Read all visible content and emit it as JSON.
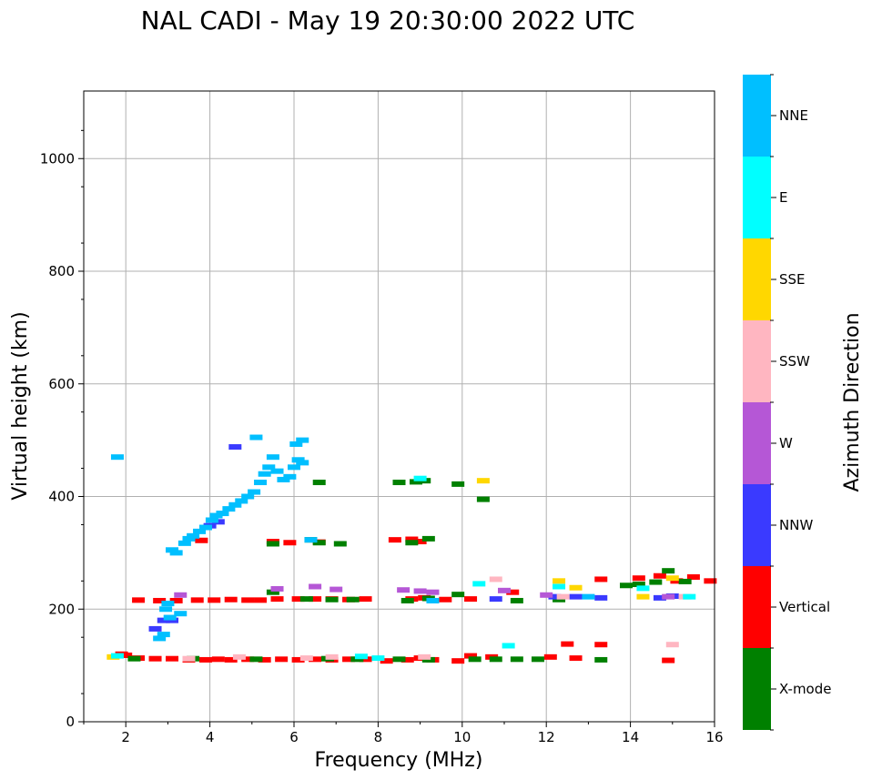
{
  "chart_data": {
    "type": "scatter",
    "title": "NAL CADI - May 19 20:30:00 2022 UTC",
    "xlabel": "Frequency (MHz)",
    "ylabel": "Virtual height (km)",
    "xlim": [
      1,
      16
    ],
    "ylim": [
      0,
      1120
    ],
    "xticks": [
      2,
      4,
      6,
      8,
      10,
      12,
      14,
      16
    ],
    "yticks": [
      0,
      200,
      400,
      600,
      800,
      1000
    ],
    "grid": true,
    "colorbar": {
      "label": "Azimuth Direction",
      "categories": [
        {
          "name": "X-mode",
          "color": "#008000"
        },
        {
          "name": "Vertical",
          "color": "#ff0000"
        },
        {
          "name": "NNW",
          "color": "#3a3aff"
        },
        {
          "name": "W",
          "color": "#b557d6"
        },
        {
          "name": "SSW",
          "color": "#ffb6c1"
        },
        {
          "name": "SSE",
          "color": "#ffd700"
        },
        {
          "name": "E",
          "color": "#00ffff"
        },
        {
          "name": "NNE",
          "color": "#00bfff"
        }
      ]
    },
    "series": [
      {
        "name": "Vertical",
        "points": [
          [
            1.9,
            120
          ],
          [
            2.0,
            118
          ],
          [
            2.3,
            113
          ],
          [
            2.7,
            112
          ],
          [
            3.1,
            112
          ],
          [
            3.5,
            110
          ],
          [
            3.9,
            110
          ],
          [
            4.2,
            111
          ],
          [
            4.5,
            110
          ],
          [
            4.9,
            111
          ],
          [
            5.3,
            110
          ],
          [
            5.7,
            111
          ],
          [
            6.1,
            110
          ],
          [
            6.5,
            111
          ],
          [
            6.9,
            110
          ],
          [
            7.3,
            111
          ],
          [
            7.7,
            111
          ],
          [
            8.2,
            108
          ],
          [
            8.7,
            110
          ],
          [
            9.0,
            113
          ],
          [
            9.3,
            110
          ],
          [
            9.9,
            108
          ],
          [
            10.2,
            117
          ],
          [
            10.7,
            115
          ],
          [
            12.1,
            115
          ],
          [
            12.5,
            138
          ],
          [
            12.7,
            113
          ],
          [
            13.3,
            137
          ],
          [
            14.9,
            109
          ],
          [
            2.3,
            216
          ],
          [
            2.8,
            215
          ],
          [
            3.2,
            215
          ],
          [
            3.7,
            216
          ],
          [
            4.1,
            216
          ],
          [
            4.5,
            217
          ],
          [
            4.9,
            216
          ],
          [
            5.2,
            216
          ],
          [
            5.6,
            218
          ],
          [
            6.1,
            218
          ],
          [
            6.5,
            218
          ],
          [
            6.9,
            218
          ],
          [
            7.3,
            217
          ],
          [
            7.7,
            218
          ],
          [
            8.8,
            218
          ],
          [
            9.1,
            220
          ],
          [
            9.6,
            217
          ],
          [
            10.2,
            218
          ],
          [
            11.2,
            230
          ],
          [
            13.3,
            253
          ],
          [
            14.2,
            255
          ],
          [
            14.7,
            259
          ],
          [
            15.1,
            250
          ],
          [
            15.5,
            257
          ],
          [
            15.9,
            250
          ],
          [
            3.8,
            322
          ],
          [
            5.5,
            320
          ],
          [
            5.9,
            318
          ],
          [
            6.6,
            319
          ],
          [
            8.4,
            323
          ],
          [
            8.8,
            324
          ],
          [
            9.0,
            320
          ]
        ]
      },
      {
        "name": "X-mode",
        "points": [
          [
            2.2,
            112
          ],
          [
            3.6,
            112
          ],
          [
            5.1,
            111
          ],
          [
            6.8,
            112
          ],
          [
            7.5,
            111
          ],
          [
            8.5,
            111
          ],
          [
            9.2,
            110
          ],
          [
            10.3,
            111
          ],
          [
            10.8,
            111
          ],
          [
            11.3,
            111
          ],
          [
            11.8,
            111
          ],
          [
            13.3,
            110
          ],
          [
            5.5,
            230
          ],
          [
            6.3,
            218
          ],
          [
            6.9,
            217
          ],
          [
            7.4,
            217
          ],
          [
            8.7,
            215
          ],
          [
            9.2,
            219
          ],
          [
            9.9,
            226
          ],
          [
            11.3,
            215
          ],
          [
            12.3,
            217
          ],
          [
            13.9,
            242
          ],
          [
            14.2,
            244
          ],
          [
            14.6,
            248
          ],
          [
            14.9,
            268
          ],
          [
            15.3,
            249
          ],
          [
            5.5,
            316
          ],
          [
            6.4,
            323
          ],
          [
            6.6,
            318
          ],
          [
            7.1,
            316
          ],
          [
            8.8,
            318
          ],
          [
            9.2,
            325
          ],
          [
            6.6,
            425
          ],
          [
            8.5,
            425
          ],
          [
            8.9,
            426
          ],
          [
            9.1,
            428
          ],
          [
            9.9,
            422
          ],
          [
            10.5,
            395
          ]
        ]
      },
      {
        "name": "NNW",
        "points": [
          [
            2.7,
            165
          ],
          [
            2.9,
            180
          ],
          [
            3.1,
            180
          ],
          [
            4.0,
            348
          ],
          [
            4.2,
            355
          ],
          [
            4.6,
            488
          ],
          [
            10.8,
            218
          ],
          [
            12.2,
            222
          ],
          [
            12.7,
            222
          ],
          [
            13.3,
            220
          ],
          [
            14.7,
            220
          ],
          [
            15.0,
            223
          ]
        ]
      },
      {
        "name": "W",
        "points": [
          [
            3.3,
            225
          ],
          [
            5.6,
            236
          ],
          [
            6.5,
            240
          ],
          [
            7.0,
            235
          ],
          [
            8.6,
            234
          ],
          [
            9.0,
            232
          ],
          [
            9.3,
            230
          ],
          [
            11.0,
            233
          ],
          [
            12.0,
            225
          ],
          [
            14.9,
            222
          ]
        ]
      },
      {
        "name": "SSW",
        "points": [
          [
            3.5,
            112
          ],
          [
            4.7,
            115
          ],
          [
            6.3,
            113
          ],
          [
            6.9,
            115
          ],
          [
            9.1,
            115
          ],
          [
            10.8,
            253
          ],
          [
            12.4,
            222
          ],
          [
            15.0,
            137
          ],
          [
            15.3,
            222
          ]
        ]
      },
      {
        "name": "SSE",
        "points": [
          [
            1.7,
            115
          ],
          [
            10.5,
            428
          ],
          [
            12.3,
            250
          ],
          [
            12.7,
            238
          ],
          [
            14.3,
            222
          ],
          [
            15.0,
            255
          ]
        ]
      },
      {
        "name": "E",
        "points": [
          [
            1.8,
            117
          ],
          [
            7.6,
            116
          ],
          [
            8.0,
            113
          ],
          [
            9.0,
            432
          ],
          [
            10.4,
            245
          ],
          [
            11.1,
            135
          ],
          [
            12.3,
            240
          ],
          [
            14.3,
            237
          ],
          [
            15.4,
            222
          ]
        ]
      },
      {
        "name": "NNE",
        "points": [
          [
            1.8,
            470
          ],
          [
            2.8,
            148
          ],
          [
            2.9,
            155
          ],
          [
            2.95,
            200
          ],
          [
            3.0,
            210
          ],
          [
            3.05,
            185
          ],
          [
            3.1,
            305
          ],
          [
            3.2,
            300
          ],
          [
            3.3,
            192
          ],
          [
            3.4,
            317
          ],
          [
            3.5,
            325
          ],
          [
            3.6,
            330
          ],
          [
            3.75,
            338
          ],
          [
            3.9,
            345
          ],
          [
            4.05,
            358
          ],
          [
            4.15,
            366
          ],
          [
            4.3,
            370
          ],
          [
            4.45,
            378
          ],
          [
            4.6,
            385
          ],
          [
            4.75,
            392
          ],
          [
            4.9,
            400
          ],
          [
            5.05,
            408
          ],
          [
            5.2,
            425
          ],
          [
            5.3,
            440
          ],
          [
            5.4,
            452
          ],
          [
            5.5,
            470
          ],
          [
            5.6,
            445
          ],
          [
            5.75,
            430
          ],
          [
            5.9,
            435
          ],
          [
            6.0,
            452
          ],
          [
            6.05,
            493
          ],
          [
            6.1,
            465
          ],
          [
            6.2,
            460
          ],
          [
            6.2,
            500
          ],
          [
            5.1,
            505
          ],
          [
            6.4,
            323
          ],
          [
            9.3,
            215
          ],
          [
            13.0,
            222
          ]
        ]
      }
    ]
  }
}
